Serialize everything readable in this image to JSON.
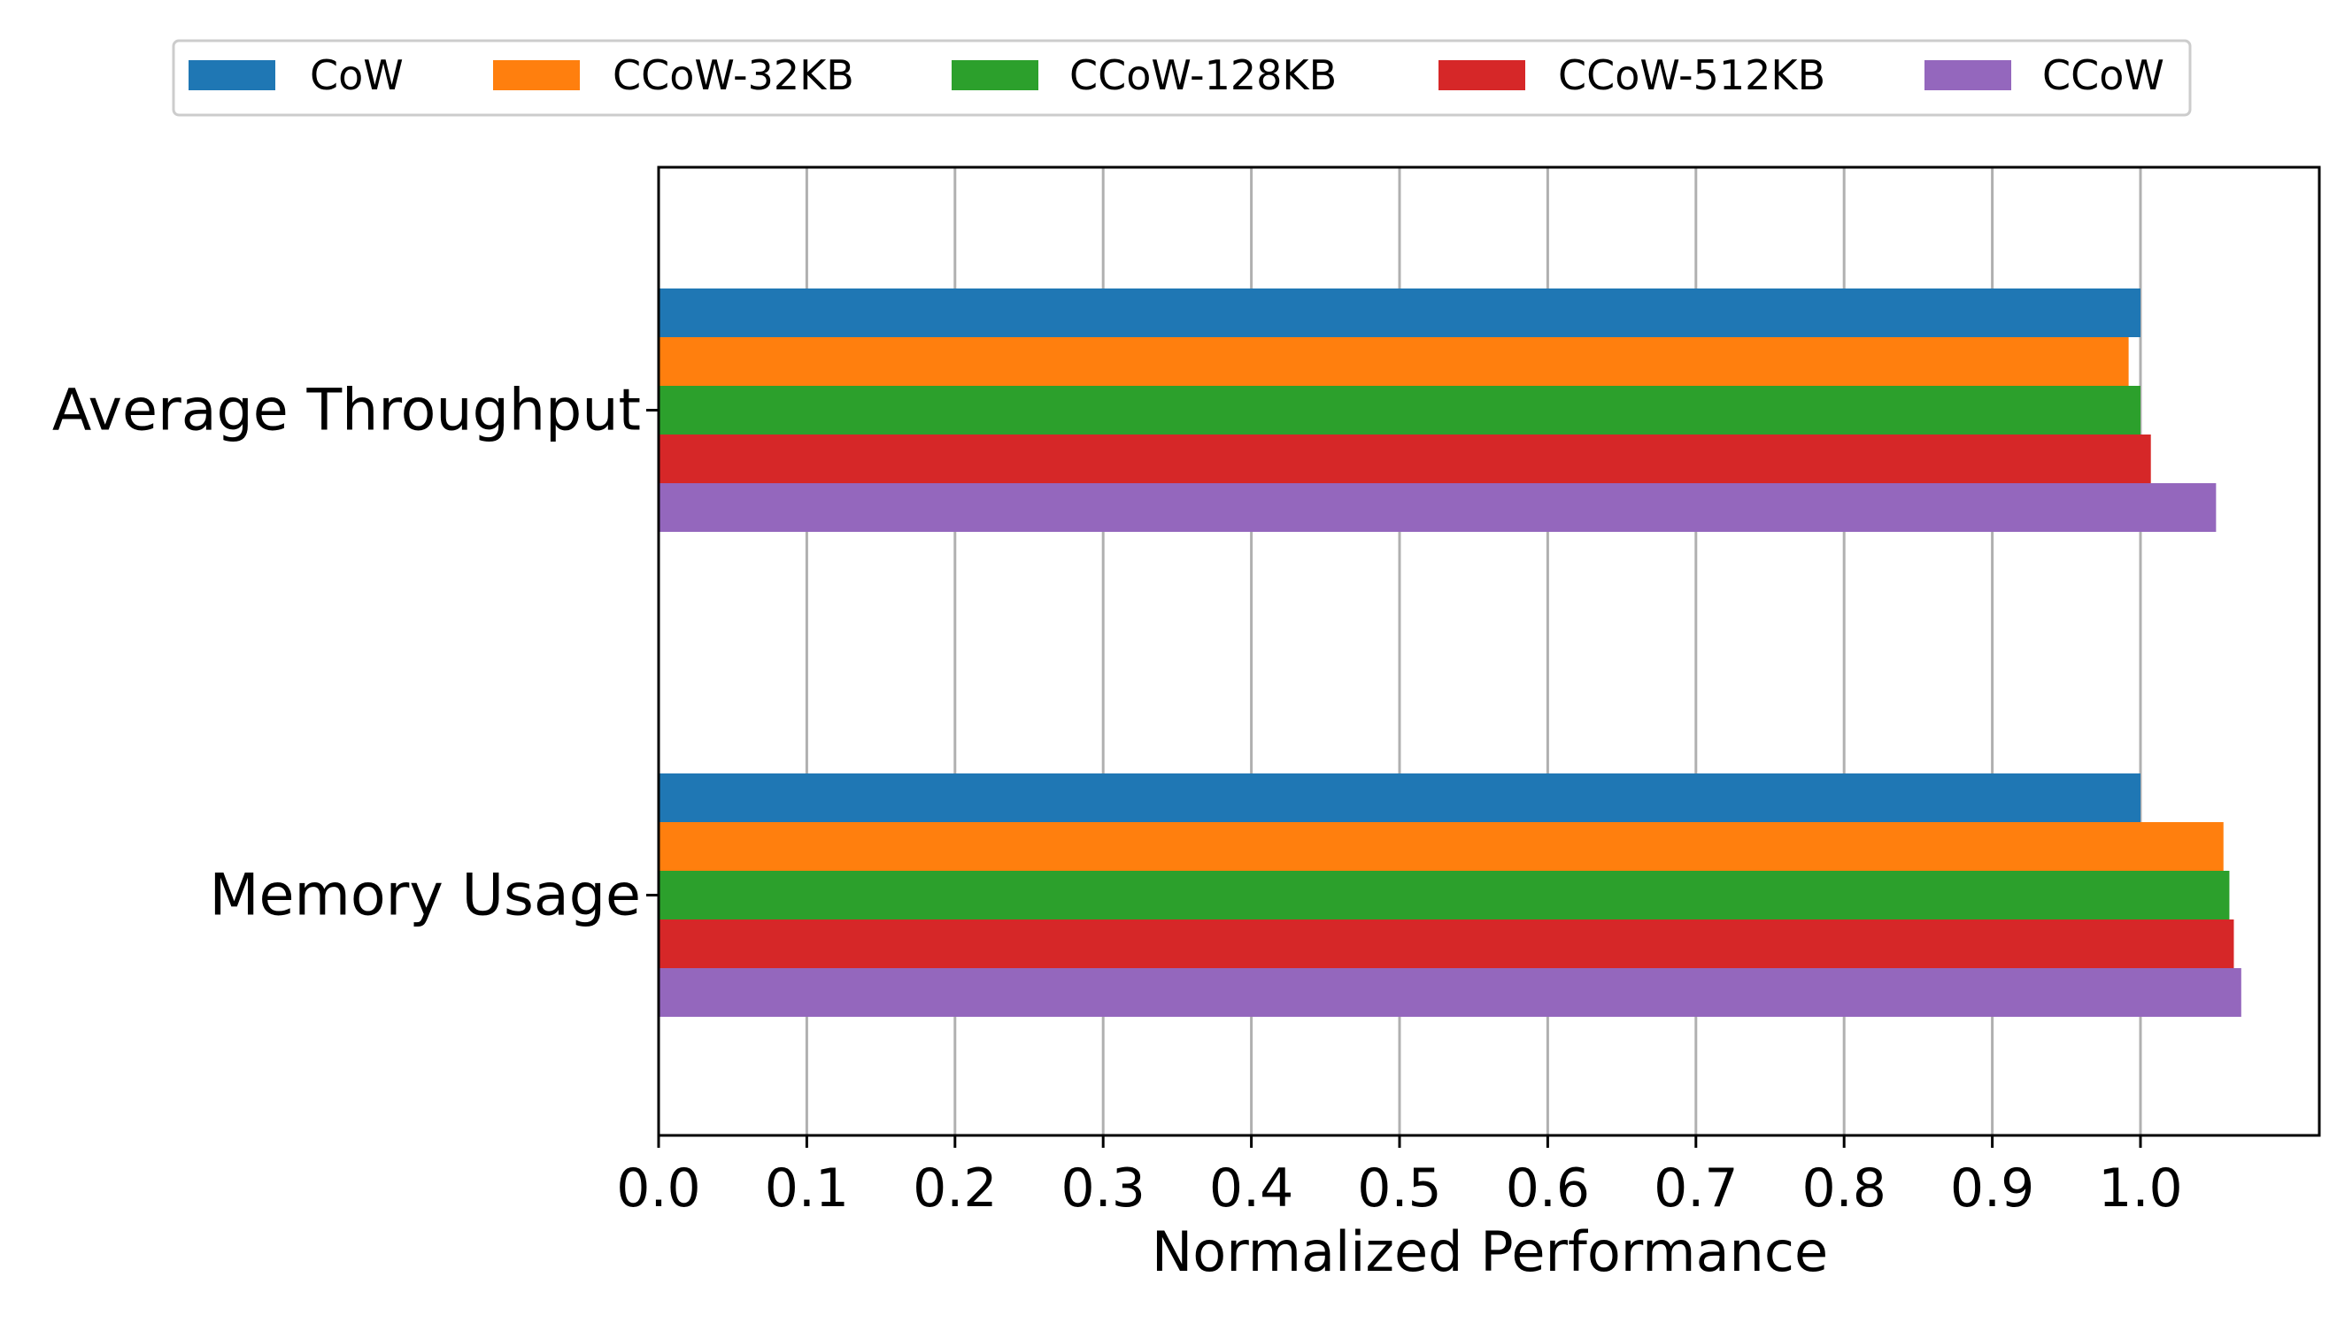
{
  "chart_data": {
    "type": "bar",
    "orientation": "horizontal",
    "title": "",
    "xlabel": "Normalized Performance",
    "ylabel": "",
    "xlim": [
      0.0,
      1.12
    ],
    "xticks": [
      "0.0",
      "0.1",
      "0.2",
      "0.3",
      "0.4",
      "0.5",
      "0.6",
      "0.7",
      "0.8",
      "0.9",
      "1.0"
    ],
    "grid": "vertical",
    "legend_position": "top-center",
    "categories": [
      "Average Throughput",
      "Memory Usage"
    ],
    "series": [
      {
        "name": "CoW",
        "color": "#1f77b4",
        "values": [
          1.0,
          1.0
        ]
      },
      {
        "name": "CCoW-32KB",
        "color": "#ff7f0e",
        "values": [
          0.992,
          1.056
        ]
      },
      {
        "name": "CCoW-128KB",
        "color": "#2ca02c",
        "values": [
          1.0,
          1.06
        ]
      },
      {
        "name": "CCoW-512KB",
        "color": "#d62728",
        "values": [
          1.007,
          1.063
        ]
      },
      {
        "name": "CCoW",
        "color": "#9467bd",
        "values": [
          1.051,
          1.068
        ]
      }
    ]
  }
}
